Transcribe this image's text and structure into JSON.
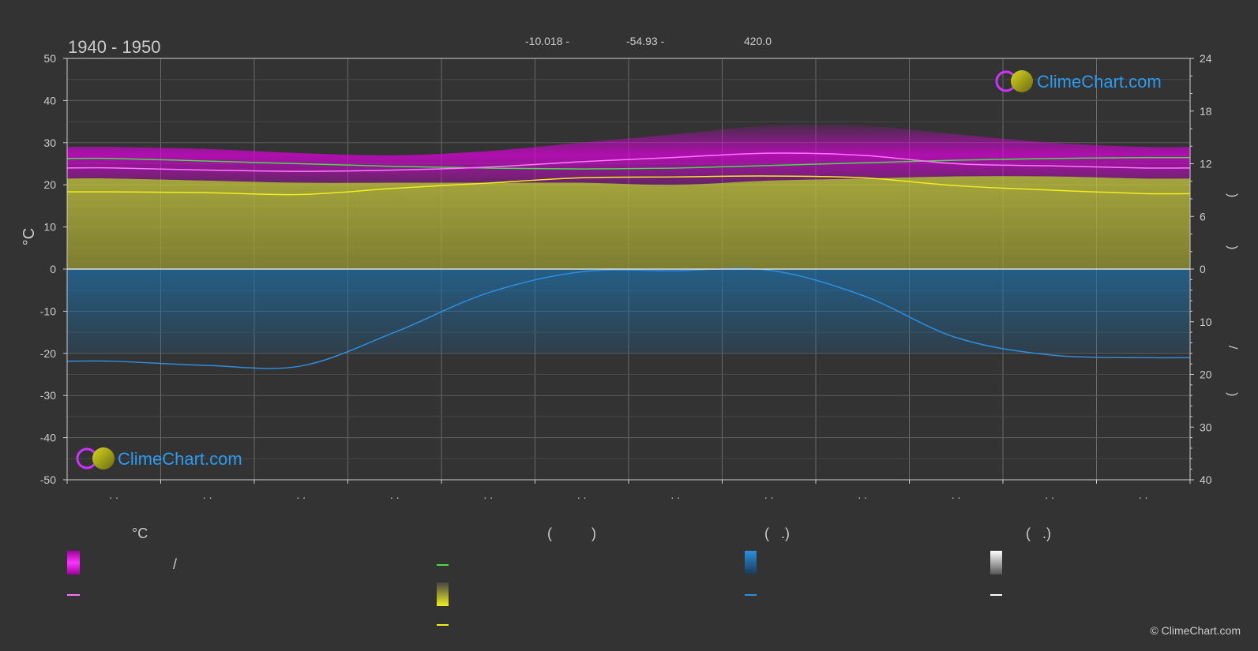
{
  "header": {
    "period": "1940 - 1950",
    "lat": "-10.018 -",
    "lon": "-54.93 -",
    "elevation": "420.0"
  },
  "brand": {
    "name": "ClimeChart.com",
    "copyright": "© ClimeChart.com"
  },
  "colors": {
    "background": "#333333",
    "grid": "#5a5a5a",
    "temp_band": "#e000e0",
    "temp_mean": "#ff77ff",
    "daylight": "#44dd44",
    "sunshine_band": "#b8b83a",
    "sunshine_line": "#eeee22",
    "rain_band": "#1e6fa8",
    "rain_line": "#2a8fe0",
    "snow": "#ffffff",
    "brand_text": "#2a9bf0"
  },
  "chart_data": {
    "type": "area",
    "title": "1940 - 1950",
    "y_left": {
      "label": "°C",
      "ylim": [
        -50,
        50
      ],
      "ticks": [
        50,
        40,
        30,
        20,
        10,
        0,
        -10,
        -20,
        -30,
        -40,
        -50
      ]
    },
    "y_right_upper": {
      "label": ")",
      "ylim": [
        0,
        24
      ],
      "ticks": [
        24,
        18,
        12,
        6,
        0
      ]
    },
    "y_right_lower": {
      "label": "/",
      "ylim": [
        0,
        40
      ],
      "ticks": [
        10,
        20,
        30,
        40
      ]
    },
    "x_tick_labels": [
      ". .",
      ". .",
      ". .",
      ". .",
      ". .",
      ". .",
      ". .",
      ". .",
      ". .",
      ". .",
      ". .",
      ". ."
    ],
    "grid": true,
    "series": [
      {
        "key": "temp_max_band",
        "values": [
          29,
          28.5,
          27.5,
          27,
          28,
          30,
          32,
          34,
          34,
          32,
          30,
          29
        ]
      },
      {
        "key": "temp_min_band",
        "values": [
          21.5,
          21,
          20.5,
          20.5,
          20.5,
          20.5,
          20,
          21,
          21.5,
          22,
          22,
          21.5
        ]
      },
      {
        "key": "temp_mean",
        "values": [
          24,
          23.5,
          23.2,
          23.5,
          24.2,
          25.5,
          26.5,
          27.5,
          27,
          25,
          24.5,
          24
        ]
      },
      {
        "key": "daylight_hours",
        "values": [
          12.6,
          12.3,
          12.0,
          11.7,
          11.5,
          11.4,
          11.5,
          11.8,
          12.1,
          12.4,
          12.6,
          12.7
        ]
      },
      {
        "key": "sunshine_hours",
        "values": [
          8.8,
          8.7,
          8.5,
          9.2,
          9.8,
          10.4,
          10.5,
          10.6,
          10.4,
          9.5,
          9.0,
          8.6
        ]
      },
      {
        "key": "precipitation_mm",
        "values": [
          17.5,
          18.3,
          18.4,
          12,
          4.5,
          0.5,
          0.3,
          0.2,
          5,
          13,
          16.3,
          16.8
        ]
      }
    ],
    "legend": {
      "col1_head": "°C",
      "col2_head": "(          )",
      "col3_head": "(   .)",
      "col4_head": "(   .)",
      "col1_row1_text": "/"
    }
  }
}
